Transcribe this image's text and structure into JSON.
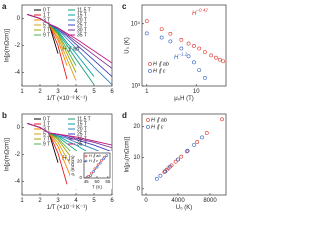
{
  "chart_data": [
    {
      "type": "line",
      "label": "a",
      "annotation": "H ∥ ab",
      "x_label": "1/T (×10⁻³ K⁻¹)",
      "y_label": "ln[ρ(mΩcm)]",
      "xlim": [
        1,
        6
      ],
      "xticks": [
        1,
        2,
        3,
        4,
        5,
        6
      ],
      "ylim": [
        -5,
        1
      ],
      "yticks": [
        -4,
        -2,
        0
      ],
      "x": [
        1.3,
        2.0,
        2.5,
        3.0,
        3.5,
        4.0,
        5.0,
        6.0
      ],
      "series": [
        {
          "name": "0 T",
          "color": "#000000",
          "values": [
            0.3,
            0,
            -0.4,
            -2.6,
            null,
            null,
            null,
            null
          ]
        },
        {
          "name": "1 T",
          "color": "#e41a1c",
          "values": [
            0.3,
            0,
            -0.4,
            -2.0,
            -4.5,
            null,
            null,
            null
          ]
        },
        {
          "name": "3 T",
          "color": "#ff7f00",
          "values": [
            0.3,
            0,
            -0.4,
            -1.6,
            -3.5,
            null,
            null,
            null
          ]
        },
        {
          "name": "5 T",
          "color": "#d4a017",
          "values": [
            0.3,
            0,
            -0.4,
            -1.4,
            -3.0,
            -4.6,
            null,
            null
          ]
        },
        {
          "name": "7 T",
          "color": "#a6a600",
          "values": [
            0.3,
            0,
            -0.4,
            -1.2,
            -2.6,
            -4.0,
            null,
            null
          ]
        },
        {
          "name": "9 T",
          "color": "#4daf4a",
          "values": [
            0.3,
            0,
            -0.4,
            -1.1,
            -2.3,
            -3.5,
            null,
            null
          ]
        },
        {
          "name": "11.5 T",
          "color": "#1b9e77",
          "values": [
            0.3,
            0,
            -0.4,
            -1.0,
            -2.0,
            -3.0,
            -4.9,
            null
          ]
        },
        {
          "name": "15 T",
          "color": "#00a6a6",
          "values": [
            0.3,
            0,
            -0.4,
            -0.9,
            -1.8,
            -2.6,
            -4.3,
            null
          ]
        },
        {
          "name": "20 T",
          "color": "#377eb8",
          "values": [
            0.3,
            0,
            -0.4,
            -0.8,
            -1.5,
            -2.2,
            -3.6,
            -4.9
          ]
        },
        {
          "name": "25 T",
          "color": "#3f3fbf",
          "values": [
            0.3,
            0,
            -0.4,
            -0.8,
            -1.3,
            -1.9,
            -3.1,
            -4.3
          ]
        },
        {
          "name": "30 T",
          "color": "#7b3294",
          "values": [
            0.3,
            0,
            -0.4,
            -0.7,
            -1.2,
            -1.7,
            -2.7,
            -3.7
          ]
        },
        {
          "name": "35 T",
          "color": "#c51b7d",
          "values": [
            0.3,
            0,
            -0.4,
            -0.7,
            -1.1,
            -1.5,
            -2.4,
            -3.3
          ]
        }
      ]
    },
    {
      "type": "line",
      "label": "b",
      "annotation": "H ∥ c",
      "x_label": "1/T (×10⁻³ K⁻¹)",
      "y_label": "ln[ρ(mΩcm)]",
      "xlim": [
        1,
        6
      ],
      "xticks": [
        1,
        2,
        3,
        4,
        5,
        6
      ],
      "ylim": [
        -5,
        1
      ],
      "yticks": [
        -4,
        -2,
        0
      ],
      "x": [
        1.3,
        2.0,
        2.5,
        3.0,
        3.5,
        4.0,
        5.0,
        6.0
      ],
      "series": [
        {
          "name": "0 T",
          "color": "#000000",
          "values": [
            0.3,
            0,
            -0.4,
            -2.6,
            null,
            null,
            null,
            null
          ]
        },
        {
          "name": "1 T",
          "color": "#e41a1c",
          "values": [
            0.3,
            0,
            -0.4,
            -1.9,
            -4.2,
            null,
            null,
            null
          ]
        },
        {
          "name": "3 T",
          "color": "#ff7f00",
          "values": [
            0.3,
            0,
            -0.4,
            -1.4,
            -3.0,
            -4.6,
            null,
            null
          ]
        },
        {
          "name": "5 T",
          "color": "#d4a017",
          "values": [
            0.3,
            0,
            -0.4,
            -1.1,
            -2.3,
            -3.5,
            null,
            null
          ]
        },
        {
          "name": "7 T",
          "color": "#a6a600",
          "values": [
            0.3,
            0,
            -0.4,
            -0.9,
            -1.8,
            -2.7,
            -4.5,
            null
          ]
        },
        {
          "name": "9 T",
          "color": "#4daf4a",
          "values": [
            0.3,
            0,
            -0.4,
            -0.8,
            -1.5,
            -2.2,
            -3.6,
            null
          ]
        },
        {
          "name": "11.5 T",
          "color": "#1b9e77",
          "values": [
            0.3,
            0,
            -0.4,
            -0.7,
            -1.2,
            -1.7,
            -2.8,
            -3.9
          ]
        },
        {
          "name": "15 T",
          "color": "#00a6a6",
          "values": [
            0.3,
            0,
            -0.4,
            -0.6,
            -1.0,
            -1.3,
            -2.1,
            -2.9
          ]
        },
        {
          "name": "20 T",
          "color": "#377eb8",
          "values": [
            0.3,
            0,
            -0.4,
            -0.6,
            -0.8,
            -1.1,
            -1.6,
            -2.2
          ]
        },
        {
          "name": "25 T",
          "color": "#3f3fbf",
          "values": [
            0.3,
            0,
            -0.4,
            -0.5,
            -0.7,
            -0.9,
            -1.3,
            -1.8
          ]
        },
        {
          "name": "30 T",
          "color": "#7b3294",
          "values": [
            0.3,
            0,
            -0.4,
            -0.5,
            -0.6,
            -0.8,
            -1.1,
            -1.5
          ]
        },
        {
          "name": "35 T",
          "color": "#c51b7d",
          "values": [
            0.3,
            0,
            -0.4,
            -0.5,
            -0.6,
            -0.7,
            -1.0,
            -1.3
          ]
        }
      ]
    },
    {
      "type": "scatter",
      "label": "c",
      "x_label": "μ₀H (T)",
      "y_label": "U₀ (K)",
      "xscale": "log",
      "yscale": "log",
      "xlim": [
        0.8,
        40
      ],
      "xticks": [
        1,
        10
      ],
      "ylim": [
        1000,
        20000
      ],
      "yticks": [
        {
          "value": 1000,
          "label": "10³"
        },
        {
          "value": 10000,
          "label": "10⁴"
        }
      ],
      "annotations": [
        {
          "text": "H",
          "sup": "−0.42"
        },
        {
          "text": "H",
          "sup": "−1.2"
        }
      ],
      "series": [
        {
          "name": "H ∥ ab",
          "color": "#e0302a",
          "x": [
            1,
            2,
            3,
            5,
            7,
            9,
            11.5,
            15,
            20,
            25,
            30,
            35
          ],
          "values": [
            11000,
            8200,
            6900,
            5500,
            4800,
            4400,
            4000,
            3500,
            3100,
            2850,
            2650,
            2500
          ]
        },
        {
          "name": "H ∥ c",
          "color": "#2f5fbf",
          "x": [
            1,
            2,
            3,
            5,
            7,
            9,
            11.5,
            15
          ],
          "values": [
            7000,
            6000,
            5200,
            4000,
            3000,
            2400,
            1800,
            1350
          ]
        }
      ]
    },
    {
      "type": "scatter",
      "label": "d",
      "x_label": "U₀ (K)",
      "y_label": "ln[ρ₀(mΩcm)]",
      "xlim": [
        -500,
        10000
      ],
      "xticks": [
        0,
        4000,
        8000
      ],
      "ylim": [
        -2,
        24
      ],
      "yticks": [
        0,
        10,
        20
      ],
      "series": [
        {
          "name": "H ∥ ab",
          "color": "#e0302a",
          "x": [
            9500,
            7600,
            6400,
            5100,
            4400,
            4000,
            3700,
            3200,
            2800,
            2600,
            2400,
            2300
          ],
          "values": [
            22.3,
            17.9,
            15.0,
            12.0,
            10.3,
            9.4,
            8.7,
            7.5,
            6.6,
            6.1,
            5.6,
            5.4
          ]
        },
        {
          "name": "H ∥ c",
          "color": "#2f5fbf",
          "x": [
            7000,
            6000,
            5200,
            4000,
            3000,
            2400,
            1800,
            1350
          ],
          "values": [
            16.5,
            14.1,
            12.2,
            9.4,
            7.1,
            5.6,
            4.2,
            3.2
          ]
        }
      ]
    },
    {
      "type": "scatter",
      "x_label": "T (K)",
      "y_label": "ρ (mΩcm)",
      "xlim": [
        44,
        56
      ],
      "xticks": [
        45,
        50,
        55
      ],
      "ylim": [
        0,
        30
      ],
      "yticks": [
        0,
        20
      ],
      "series": [
        {
          "name": "H ∥ ab",
          "color": "#e0302a",
          "x": [
            46,
            47.5,
            49,
            50.5,
            52,
            53.5
          ],
          "values": [
            2,
            6,
            11,
            16,
            21,
            25
          ]
        },
        {
          "name": "H ∥ c",
          "color": "#2f5fbf",
          "x": [
            47,
            48.5,
            50,
            51.5,
            53,
            54.5
          ],
          "values": [
            3,
            8,
            13,
            18,
            23,
            27
          ]
        }
      ]
    }
  ]
}
